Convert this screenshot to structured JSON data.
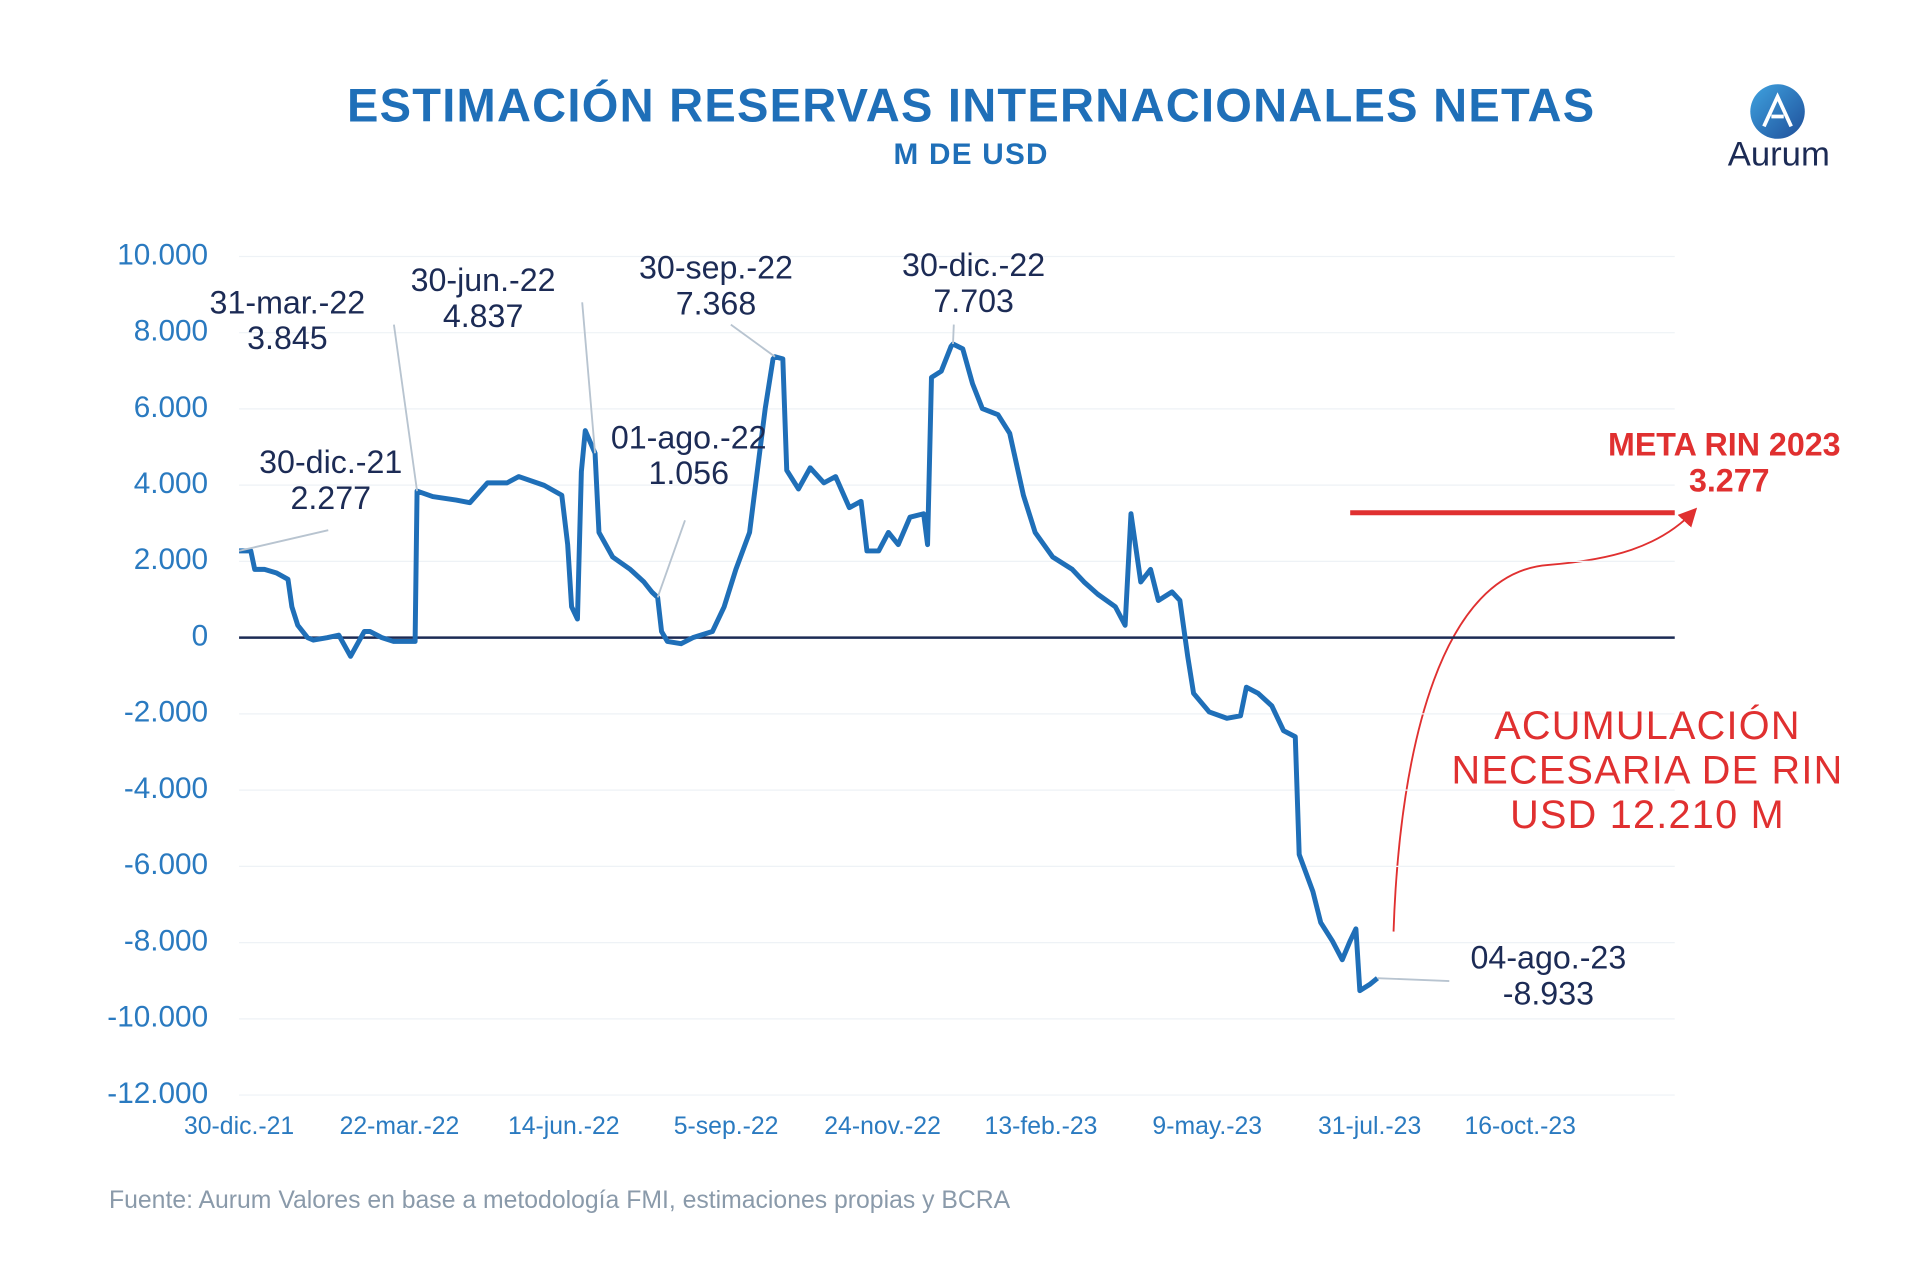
{
  "chart_data": {
    "type": "line",
    "title": "ESTIMACIÓN RESERVAS INTERNACIONALES NETAS",
    "subtitle": "M DE USD",
    "brand": "Aurum",
    "source": "Fuente: Aurum Valores en base a metodología FMI, estimaciones propias y BCRA",
    "color": "#1f6fb8",
    "grid": true,
    "x": [
      "2021-12-30",
      "2022-01-05",
      "2022-01-07",
      "2022-01-12",
      "2022-01-18",
      "2022-01-24",
      "2022-01-26",
      "2022-01-29",
      "2022-02-03",
      "2022-02-06",
      "2022-02-13",
      "2022-02-19",
      "2022-02-25",
      "2022-03-04",
      "2022-03-07",
      "2022-03-13",
      "2022-03-19",
      "2022-03-30",
      "2022-03-31",
      "2022-04-08",
      "2022-04-20",
      "2022-04-27",
      "2022-05-06",
      "2022-05-16",
      "2022-05-22",
      "2022-06-04",
      "2022-06-13",
      "2022-06-16",
      "2022-06-18",
      "2022-06-21",
      "2022-06-23",
      "2022-06-25",
      "2022-06-30",
      "2022-07-02",
      "2022-07-09",
      "2022-07-18",
      "2022-07-25",
      "2022-07-29",
      "2022-08-01",
      "2022-08-03",
      "2022-08-06",
      "2022-08-13",
      "2022-08-19",
      "2022-08-29",
      "2022-09-04",
      "2022-09-10",
      "2022-09-17",
      "2022-09-21",
      "2022-09-25",
      "2022-09-29",
      "2022-09-30",
      "2022-10-04",
      "2022-10-06",
      "2022-10-12",
      "2022-10-18",
      "2022-10-25",
      "2022-10-31",
      "2022-11-07",
      "2022-11-13",
      "2022-11-16",
      "2022-11-22",
      "2022-11-27",
      "2022-12-02",
      "2022-12-08",
      "2022-12-15",
      "2022-12-17",
      "2022-12-19",
      "2022-12-24",
      "2022-12-29",
      "2022-12-30",
      "2023-01-04",
      "2023-01-09",
      "2023-01-14",
      "2023-01-22",
      "2023-01-28",
      "2023-02-04",
      "2023-02-10",
      "2023-02-19",
      "2023-03-01",
      "2023-03-07",
      "2023-03-14",
      "2023-03-23",
      "2023-03-28",
      "2023-03-31",
      "2023-04-05",
      "2023-04-10",
      "2023-04-14",
      "2023-04-21",
      "2023-04-25",
      "2023-04-29",
      "2023-05-02",
      "2023-05-10",
      "2023-05-19",
      "2023-05-26",
      "2023-05-29",
      "2023-06-04",
      "2023-06-11",
      "2023-06-17",
      "2023-06-23",
      "2023-06-25",
      "2023-07-02",
      "2023-07-06",
      "2023-07-12",
      "2023-07-17",
      "2023-07-21",
      "2023-07-24",
      "2023-07-26",
      "2023-07-31",
      "2023-08-04"
    ],
    "values": [
      2277,
      2277,
      1790,
      1790,
      1700,
      1530,
      810,
      325,
      0,
      -65,
      0,
      65,
      -490,
      160,
      160,
      0,
      -100,
      -100,
      3845,
      3700,
      3610,
      3540,
      4060,
      4060,
      4225,
      3995,
      3735,
      2440,
      813,
      488,
      4355,
      5430,
      4837,
      2760,
      2115,
      1790,
      1460,
      1200,
      1056,
      160,
      -100,
      -160,
      0,
      160,
      810,
      1790,
      2760,
      4390,
      6010,
      7313,
      7368,
      7313,
      4390,
      3900,
      4455,
      4060,
      4225,
      3410,
      3575,
      2275,
      2275,
      2760,
      2440,
      3160,
      3250,
      2440,
      6825,
      6990,
      7640,
      7703,
      7575,
      6660,
      6010,
      5850,
      5360,
      3735,
      2760,
      2115,
      1790,
      1460,
      1140,
      810,
      325,
      3250,
      1460,
      1790,
      975,
      1200,
      975,
      -490,
      -1460,
      -1950,
      -2115,
      -2050,
      -1300,
      -1460,
      -1790,
      -2440,
      -2600,
      -5690,
      -6660,
      -7475,
      -7960,
      -8450,
      -7960,
      -7640,
      -9260,
      -9100,
      -8933
    ],
    "xlim": [
      "2021-12-30",
      "2024-01-03"
    ],
    "xticks": [
      {
        "value": "2021-12-30",
        "label": "30-dic.-21"
      },
      {
        "value": "2022-03-22",
        "label": "22-mar.-22"
      },
      {
        "value": "2022-06-14",
        "label": "14-jun.-22"
      },
      {
        "value": "2022-09-05",
        "label": "5-sep.-22"
      },
      {
        "value": "2022-11-24",
        "label": "24-nov.-22"
      },
      {
        "value": "2023-02-13",
        "label": "13-feb.-23"
      },
      {
        "value": "2023-05-09",
        "label": "9-may.-23"
      },
      {
        "value": "2023-07-31",
        "label": "31-jul.-23"
      },
      {
        "value": "2023-10-16",
        "label": "16-oct.-23"
      }
    ],
    "ylim": [
      -12000,
      10000
    ],
    "yticks": [
      {
        "value": 10000,
        "label": "10.000"
      },
      {
        "value": 8000,
        "label": "8.000"
      },
      {
        "value": 6000,
        "label": "6.000"
      },
      {
        "value": 4000,
        "label": "4.000"
      },
      {
        "value": 2000,
        "label": "2.000"
      },
      0,
      {
        "value": -2000,
        "label": "-2.000"
      },
      {
        "value": -4000,
        "label": "-4.000"
      },
      {
        "value": -6000,
        "label": "-6.000"
      },
      {
        "value": -8000,
        "label": "-8.000"
      },
      {
        "value": -10000,
        "label": "-10.000"
      },
      {
        "value": -12000,
        "label": "-12.000"
      }
    ],
    "annotations": [
      {
        "date_label": "30-dic.-21",
        "x": "2021-12-30",
        "value": 2277,
        "value_label": "2.277"
      },
      {
        "date_label": "31-mar.-22",
        "x": "2022-03-31",
        "value": 3845,
        "value_label": "3.845"
      },
      {
        "date_label": "30-jun.-22",
        "x": "2022-06-30",
        "value": 4837,
        "value_label": "4.837"
      },
      {
        "date_label": "01-ago.-22",
        "x": "2022-08-01",
        "value": 1056,
        "value_label": "1.056"
      },
      {
        "date_label": "30-sep.-22",
        "x": "2022-09-30",
        "value": 7368,
        "value_label": "7.368"
      },
      {
        "date_label": "30-dic.-22",
        "x": "2022-12-30",
        "value": 7703,
        "value_label": "7.703"
      },
      {
        "date_label": "04-ago.-23",
        "x": "2023-08-04",
        "value": -8933,
        "value_label": "-8.933"
      }
    ],
    "target": {
      "label": "META RIN 2023",
      "value": 3277,
      "value_label": "3.277",
      "color": "#e03030"
    },
    "note": [
      "ACUMULACIÓN",
      "NECESARIA DE RIN",
      "USD 12.210 M"
    ]
  }
}
